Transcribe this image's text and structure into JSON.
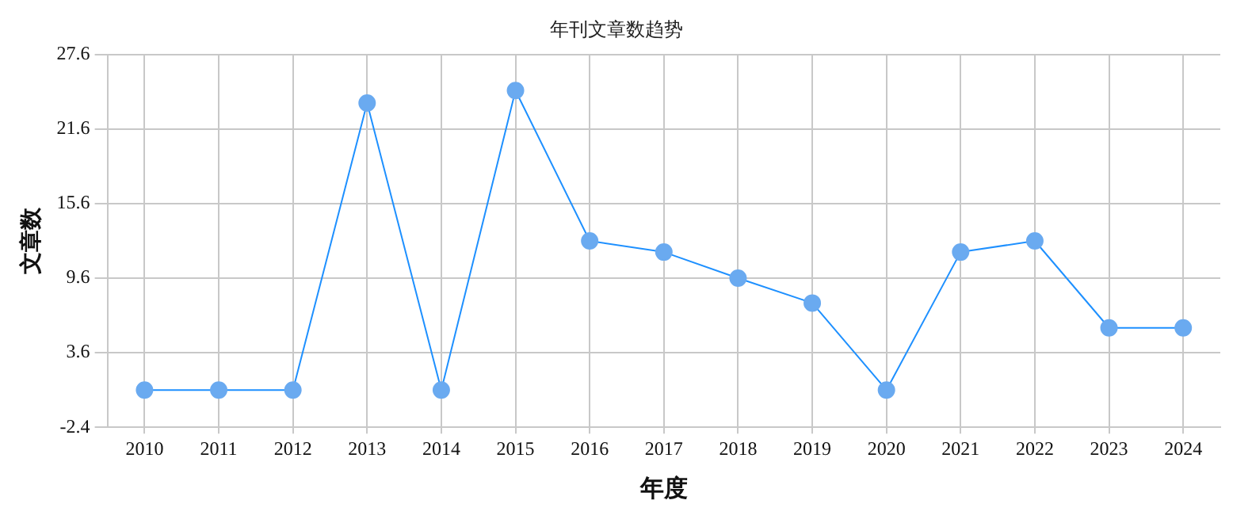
{
  "chart_data": {
    "type": "line",
    "title": "年刊文章数趋势",
    "xlabel": "年度",
    "ylabel": "文章数",
    "categories": [
      "2010",
      "2011",
      "2012",
      "2013",
      "2014",
      "2015",
      "2016",
      "2017",
      "2018",
      "2019",
      "2020",
      "2021",
      "2022",
      "2023",
      "2024"
    ],
    "series": [
      {
        "color": "#1e90ff",
        "values": [
          0.6,
          0.6,
          0.6,
          23.7,
          0.6,
          24.7,
          12.6,
          11.7,
          9.6,
          7.6,
          0.6,
          11.7,
          12.6,
          5.6,
          5.6
        ]
      }
    ],
    "ylim": [
      -2.4,
      27.6
    ],
    "yticks": [
      -2.4,
      3.6,
      9.6,
      15.6,
      21.6,
      27.6
    ],
    "grid": true,
    "legend": false,
    "marker": "circle",
    "line_style": "solid"
  }
}
